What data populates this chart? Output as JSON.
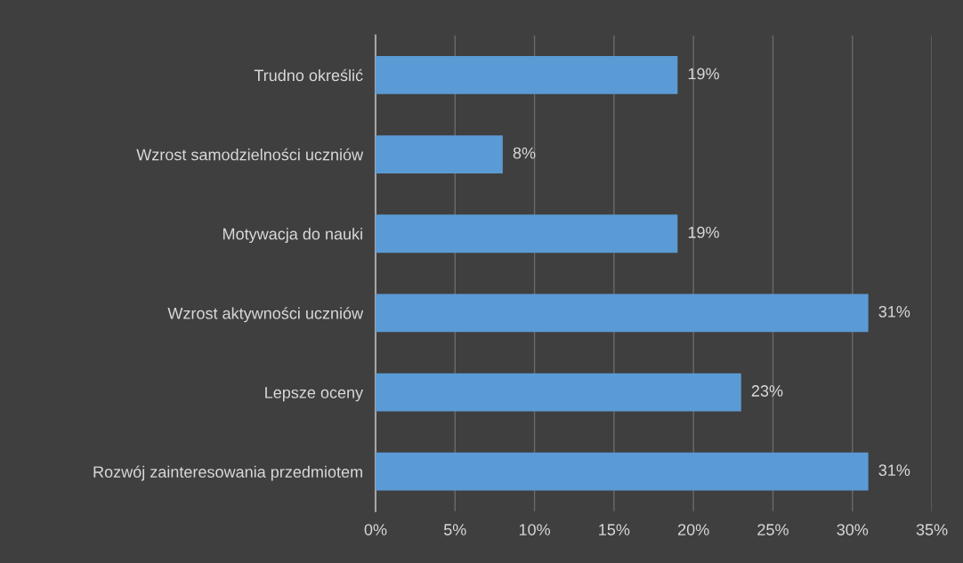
{
  "chart_data": {
    "type": "bar",
    "orientation": "horizontal",
    "categories": [
      "Trudno określić",
      "Wzrost samodzielności uczniów",
      "Motywacja do nauki",
      "Wzrost aktywności uczniów",
      "Lepsze oceny",
      "Rozwój zainteresowania przedmiotem"
    ],
    "values": [
      19,
      8,
      19,
      31,
      23,
      31
    ],
    "value_labels": [
      "19%",
      "8%",
      "19%",
      "31%",
      "23%",
      "31%"
    ],
    "color": "#5b9bd5",
    "xlim": [
      0,
      35
    ],
    "xticks": [
      {
        "value": 0,
        "label": "0%"
      },
      {
        "value": 5,
        "label": "5%"
      },
      {
        "value": 10,
        "label": "10%"
      },
      {
        "value": 15,
        "label": "15%"
      },
      {
        "value": 20,
        "label": "20%"
      },
      {
        "value": 25,
        "label": "25%"
      },
      {
        "value": 30,
        "label": "30%"
      },
      {
        "value": 35,
        "label": "35%"
      }
    ],
    "grid": "x",
    "legend": false
  }
}
